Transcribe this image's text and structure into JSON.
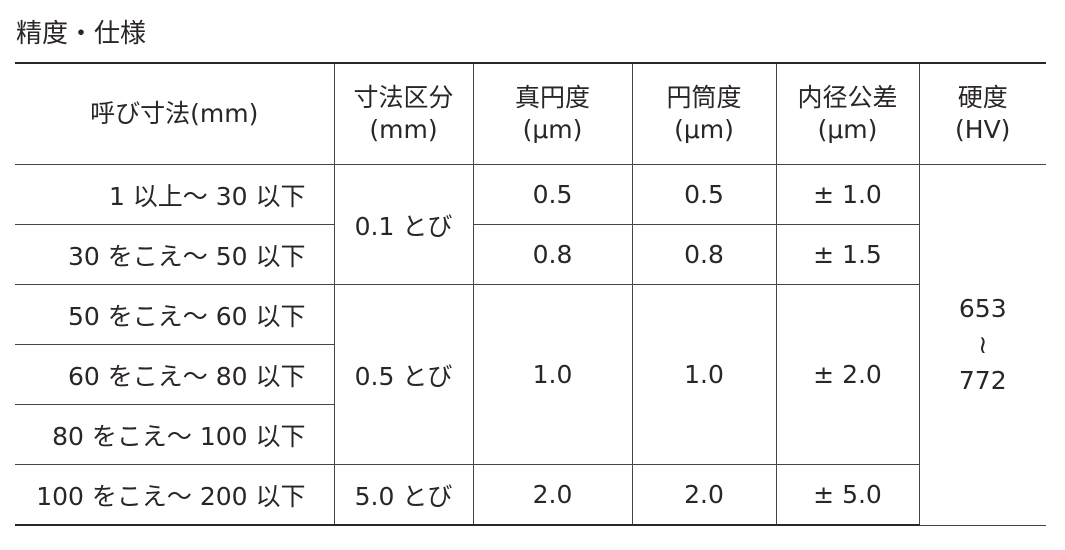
{
  "title": "精度・仕様",
  "headers": {
    "nominal": "呼び寸法(mm)",
    "increment_1": "寸法区分",
    "increment_2": "(mm)",
    "roundness_1": "真円度",
    "roundness_2": "(μm)",
    "cylindricity_1": "円筒度",
    "cylindricity_2": "(μm)",
    "bore_tol_1": "内径公差",
    "bore_tol_2": "(μm)",
    "hardness_1": "硬度",
    "hardness_2": "(HV)"
  },
  "rows": [
    {
      "nominal": "1 以上～ 30 以下",
      "increment": "0.1 とび",
      "roundness": "0.5",
      "cylindricity": "0.5",
      "bore_tol": "± 1.0"
    },
    {
      "nominal": "30 をこえ～ 50 以下",
      "roundness": "0.8",
      "cylindricity": "0.8",
      "bore_tol": "± 1.5"
    },
    {
      "nominal": "50 をこえ～ 60 以下",
      "increment": "0.5 とび",
      "roundness": "1.0",
      "cylindricity": "1.0",
      "bore_tol": "± 2.0"
    },
    {
      "nominal": "60 をこえ～ 80 以下"
    },
    {
      "nominal": "80 をこえ～ 100 以下"
    },
    {
      "nominal": "100 をこえ～ 200 以下",
      "increment": "5.0 とび",
      "roundness": "2.0",
      "cylindricity": "2.0",
      "bore_tol": "± 5.0"
    }
  ],
  "hardness": {
    "min": "653",
    "sep": "≀",
    "max": "772"
  }
}
